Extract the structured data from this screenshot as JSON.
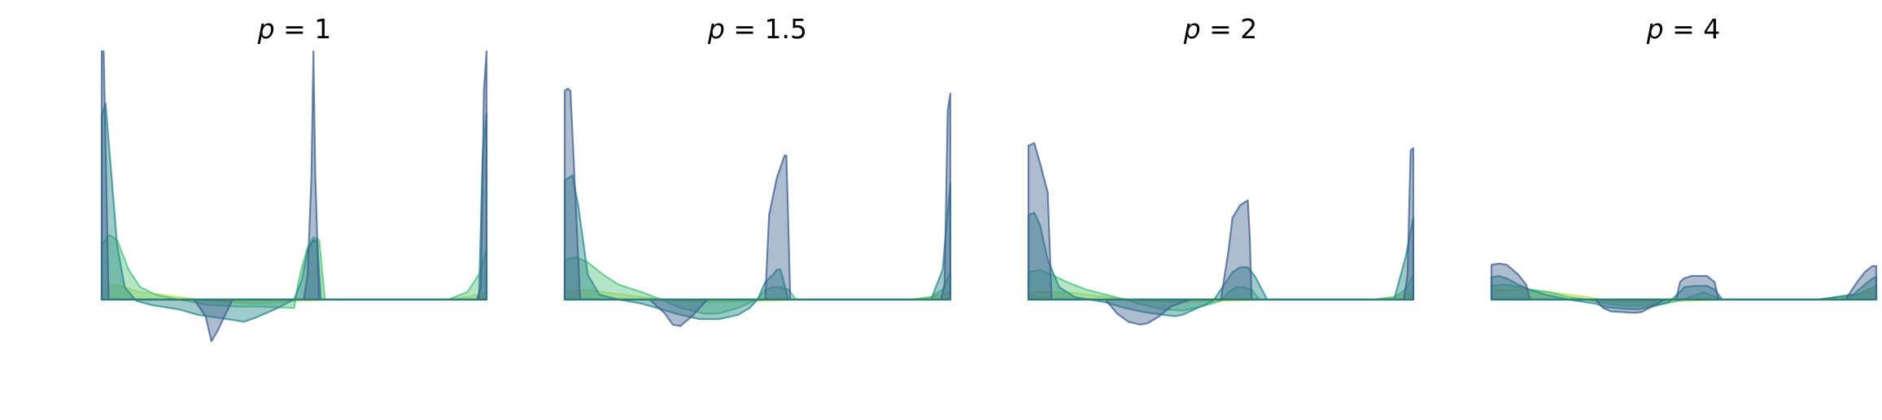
{
  "figure": {
    "style": {
      "colors": [
        "#3d5f8f",
        "#2a8a8c",
        "#4ec27a",
        "#c3e35a"
      ],
      "fill_opacity": [
        0.42,
        0.45,
        0.42,
        0.45
      ],
      "baseline_color": "#2f7c74"
    }
  },
  "chart_data": [
    {
      "type": "area",
      "title": "p = 1",
      "title_parts": {
        "symbol": "p",
        "eq": " = ",
        "value": "1"
      },
      "xlim": [
        0,
        1
      ],
      "ylim": [
        -0.45,
        1.0
      ],
      "axes_visible": false,
      "grid": false,
      "series": [
        {
          "x": [
            0,
            0.005,
            0.018,
            0.045,
            0.09,
            0.16,
            0.24,
            0.27,
            0.285,
            0.3,
            0.34,
            0.4,
            0.48,
            0.525,
            0.535,
            0.545,
            0.55,
            0.555,
            0.565,
            0.58,
            0.62,
            0.75,
            0.9,
            0.975,
            0.985,
            0.993,
            1
          ],
          "y": [
            1.0,
            1.0,
            0.0,
            0.0,
            0.0,
            0.0,
            0.0,
            -0.12,
            -0.3,
            -0.23,
            0.0,
            0.0,
            0.0,
            0.0,
            0.1,
            0.5,
            1.0,
            0.5,
            0.0,
            0.0,
            0.0,
            0.0,
            0.0,
            0.0,
            0.05,
            0.84,
            1.0
          ]
        },
        {
          "x": [
            0,
            0.01,
            0.02,
            0.04,
            0.06,
            0.09,
            0.13,
            0.2,
            0.25,
            0.3,
            0.35,
            0.37,
            0.4,
            0.45,
            0.5,
            0.52,
            0.535,
            0.55,
            0.56,
            0.57,
            0.58,
            0.62,
            0.7,
            0.8,
            0.9,
            0.98,
            0.99,
            1
          ],
          "y": [
            0.74,
            0.79,
            0.6,
            0.22,
            0.05,
            -0.01,
            -0.04,
            -0.07,
            -0.11,
            -0.13,
            -0.15,
            -0.16,
            -0.13,
            -0.07,
            0.0,
            0.08,
            0.2,
            0.24,
            0.23,
            0.0,
            0.0,
            0.0,
            0.0,
            0.0,
            0.0,
            0.0,
            0.59,
            0.75
          ]
        },
        {
          "x": [
            0,
            0.02,
            0.04,
            0.07,
            0.1,
            0.14,
            0.2,
            0.28,
            0.35,
            0.4,
            0.5,
            0.51,
            0.52,
            0.535,
            0.55,
            0.565,
            0.58,
            0.62,
            0.7,
            0.8,
            0.9,
            0.95,
            0.98,
            1
          ],
          "y": [
            0.22,
            0.26,
            0.24,
            0.12,
            0.05,
            0.02,
            0.0,
            -0.04,
            -0.05,
            -0.05,
            -0.06,
            0.06,
            0.13,
            0.21,
            0.25,
            0.24,
            0.0,
            0.0,
            0.0,
            0.0,
            0.0,
            0.03,
            0.1,
            0.2
          ]
        },
        {
          "x": [
            0,
            0.03,
            0.06,
            0.1,
            0.15,
            0.2,
            0.25,
            0.3,
            0.35,
            0.4,
            0.45,
            0.5,
            0.6,
            0.7,
            0.8,
            0.9,
            0.95,
            0.98,
            1
          ],
          "y": [
            0.03,
            0.06,
            0.05,
            0.03,
            0.02,
            0.01,
            0.0,
            -0.01,
            -0.02,
            -0.03,
            -0.02,
            -0.01,
            0.0,
            0.0,
            0.0,
            0.0,
            0.01,
            0.02,
            0.03
          ]
        }
      ]
    },
    {
      "type": "area",
      "title": "p = 1.5",
      "title_parts": {
        "symbol": "p",
        "eq": " = ",
        "value": "1.5"
      },
      "xlim": [
        0,
        1
      ],
      "ylim": [
        -0.45,
        1.0
      ],
      "axes_visible": false,
      "grid": false,
      "series": [
        {
          "x": [
            0,
            0.008,
            0.015,
            0.04,
            0.06,
            0.18,
            0.22,
            0.26,
            0.28,
            0.3,
            0.33,
            0.37,
            0.45,
            0.52,
            0.53,
            0.55,
            0.57,
            0.575,
            0.585,
            0.6,
            0.75,
            0.9,
            0.975,
            0.985,
            0.993,
            1
          ],
          "y": [
            0.84,
            0.85,
            0.84,
            0.0,
            0.0,
            0.0,
            0.0,
            -0.1,
            -0.18,
            -0.19,
            -0.12,
            0.0,
            0.0,
            0.0,
            0.34,
            0.49,
            0.58,
            0.58,
            0.0,
            0.0,
            0.0,
            0.0,
            0.0,
            0.06,
            0.76,
            0.83
          ]
        },
        {
          "x": [
            0,
            0.02,
            0.035,
            0.06,
            0.09,
            0.14,
            0.2,
            0.25,
            0.3,
            0.35,
            0.4,
            0.45,
            0.48,
            0.5,
            0.52,
            0.54,
            0.55,
            0.56,
            0.58,
            0.6,
            0.7,
            0.85,
            0.95,
            0.98,
            1
          ],
          "y": [
            0.48,
            0.5,
            0.38,
            0.1,
            0.02,
            0.0,
            -0.03,
            -0.07,
            -0.11,
            -0.14,
            -0.14,
            -0.11,
            -0.06,
            0.0,
            0.07,
            0.1,
            0.12,
            0.12,
            0.0,
            0.0,
            0.0,
            0.0,
            0.0,
            0.12,
            0.47
          ]
        },
        {
          "x": [
            0,
            0.03,
            0.06,
            0.1,
            0.14,
            0.2,
            0.25,
            0.3,
            0.36,
            0.4,
            0.45,
            0.5,
            0.52,
            0.54,
            0.56,
            0.58,
            0.6,
            0.7,
            0.8,
            0.9,
            0.95,
            0.98,
            1
          ],
          "y": [
            0.16,
            0.17,
            0.15,
            0.1,
            0.06,
            0.03,
            0.0,
            -0.06,
            -0.1,
            -0.1,
            -0.06,
            0.0,
            0.04,
            0.05,
            0.05,
            0.04,
            0.0,
            0.0,
            0.0,
            0.0,
            0.01,
            0.04,
            0.11
          ]
        },
        {
          "x": [
            0,
            0.05,
            0.1,
            0.15,
            0.2,
            0.3,
            0.4,
            0.5,
            0.6,
            0.7,
            0.8,
            0.9,
            0.95,
            1
          ],
          "y": [
            0.03,
            0.04,
            0.03,
            0.02,
            0.01,
            -0.01,
            -0.02,
            -0.01,
            0.0,
            0.0,
            0.0,
            0.0,
            0.01,
            0.03
          ]
        }
      ]
    },
    {
      "type": "area",
      "title": "p = 2",
      "title_parts": {
        "symbol": "p",
        "eq": " = ",
        "value": "2"
      },
      "xlim": [
        0,
        1
      ],
      "ylim": [
        -0.45,
        1.0
      ],
      "axes_visible": false,
      "grid": false,
      "series": [
        {
          "x": [
            0,
            0.015,
            0.03,
            0.05,
            0.06,
            0.2,
            0.23,
            0.26,
            0.29,
            0.31,
            0.34,
            0.37,
            0.42,
            0.5,
            0.52,
            0.53,
            0.55,
            0.57,
            0.575,
            0.58,
            0.6,
            0.75,
            0.9,
            0.975,
            0.985,
            0.993,
            1
          ],
          "y": [
            0.62,
            0.63,
            0.55,
            0.43,
            0.0,
            0.0,
            -0.1,
            -0.16,
            -0.18,
            -0.17,
            -0.12,
            -0.05,
            0.0,
            0.0,
            0.2,
            0.33,
            0.38,
            0.4,
            0.25,
            0.0,
            0.0,
            0.0,
            0.0,
            0.0,
            0.1,
            0.6,
            0.61
          ]
        },
        {
          "x": [
            0,
            0.015,
            0.03,
            0.05,
            0.08,
            0.12,
            0.2,
            0.25,
            0.3,
            0.35,
            0.38,
            0.4,
            0.44,
            0.48,
            0.5,
            0.53,
            0.55,
            0.57,
            0.59,
            0.62,
            0.7,
            0.85,
            0.95,
            0.98,
            1
          ],
          "y": [
            0.34,
            0.35,
            0.3,
            0.16,
            0.05,
            0.01,
            -0.02,
            -0.06,
            -0.09,
            -0.11,
            -0.12,
            -0.11,
            -0.06,
            -0.01,
            0.04,
            0.11,
            0.13,
            0.13,
            0.09,
            0.0,
            0.0,
            0.0,
            0.0,
            0.17,
            0.33
          ]
        },
        {
          "x": [
            0,
            0.03,
            0.06,
            0.1,
            0.15,
            0.2,
            0.25,
            0.3,
            0.35,
            0.4,
            0.45,
            0.5,
            0.52,
            0.54,
            0.56,
            0.58,
            0.6,
            0.7,
            0.8,
            0.9,
            0.95,
            0.98,
            1
          ],
          "y": [
            0.11,
            0.12,
            0.1,
            0.07,
            0.04,
            0.02,
            0.0,
            -0.04,
            -0.07,
            -0.08,
            -0.05,
            -0.01,
            0.03,
            0.05,
            0.05,
            0.04,
            0.0,
            0.0,
            0.0,
            0.0,
            0.01,
            0.04,
            0.1
          ]
        },
        {
          "x": [
            0,
            0.05,
            0.1,
            0.15,
            0.2,
            0.3,
            0.4,
            0.5,
            0.6,
            0.7,
            0.8,
            0.9,
            0.95,
            1
          ],
          "y": [
            0.03,
            0.03,
            0.03,
            0.02,
            0.01,
            -0.01,
            -0.02,
            -0.01,
            0.0,
            0.0,
            0.0,
            0.0,
            0.01,
            0.03
          ]
        }
      ]
    },
    {
      "type": "area",
      "title": "p = 4",
      "title_parts": {
        "symbol": "p",
        "eq": " = ",
        "value": "4"
      },
      "xlim": [
        0,
        1
      ],
      "ylim": [
        -0.45,
        1.0
      ],
      "axes_visible": false,
      "grid": false,
      "series": [
        {
          "x": [
            0,
            0.02,
            0.04,
            0.07,
            0.09,
            0.1,
            0.27,
            0.29,
            0.31,
            0.34,
            0.37,
            0.39,
            0.41,
            0.45,
            0.48,
            0.49,
            0.5,
            0.52,
            0.56,
            0.58,
            0.59,
            0.6,
            0.92,
            0.95,
            0.97,
            0.99,
            1
          ],
          "y": [
            0.14,
            0.145,
            0.14,
            0.1,
            0.06,
            0.0,
            0.0,
            -0.06,
            -0.085,
            -0.09,
            -0.095,
            -0.09,
            -0.06,
            0.0,
            0.0,
            0.07,
            0.085,
            0.095,
            0.095,
            0.07,
            0.0,
            0.0,
            0.0,
            0.07,
            0.11,
            0.135,
            0.135
          ]
        },
        {
          "x": [
            0,
            0.02,
            0.04,
            0.07,
            0.1,
            0.14,
            0.2,
            0.27,
            0.3,
            0.34,
            0.38,
            0.42,
            0.46,
            0.49,
            0.5,
            0.53,
            0.56,
            0.58,
            0.6,
            0.7,
            0.85,
            0.94,
            0.97,
            0.99,
            1
          ],
          "y": [
            0.09,
            0.095,
            0.085,
            0.06,
            0.04,
            0.02,
            0.0,
            -0.03,
            -0.055,
            -0.065,
            -0.07,
            -0.05,
            -0.02,
            0.03,
            0.05,
            0.055,
            0.055,
            0.04,
            0.0,
            0.0,
            0.0,
            0.02,
            0.06,
            0.085,
            0.09
          ]
        },
        {
          "x": [
            0,
            0.03,
            0.06,
            0.1,
            0.15,
            0.2,
            0.25,
            0.3,
            0.35,
            0.4,
            0.45,
            0.5,
            0.55,
            0.6,
            0.7,
            0.85,
            0.95,
            0.98,
            1
          ],
          "y": [
            0.055,
            0.06,
            0.055,
            0.04,
            0.03,
            0.01,
            0.0,
            -0.03,
            -0.045,
            -0.045,
            -0.03,
            0.0,
            0.03,
            0.0,
            0.0,
            0.0,
            0.02,
            0.04,
            0.055
          ]
        },
        {
          "x": [
            0,
            0.05,
            0.1,
            0.15,
            0.2,
            0.25,
            0.3,
            0.35,
            0.4,
            0.45,
            0.5,
            0.6,
            0.7,
            0.8,
            0.9,
            0.95,
            1
          ],
          "y": [
            0.04,
            0.04,
            0.035,
            0.03,
            0.02,
            0.01,
            -0.01,
            -0.02,
            -0.02,
            -0.015,
            -0.01,
            0.0,
            0.0,
            0.0,
            0.0,
            0.015,
            0.035
          ]
        }
      ]
    }
  ]
}
